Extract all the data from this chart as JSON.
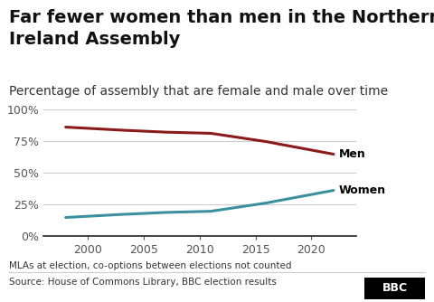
{
  "title": "Far fewer women than men in the Northern\nIreland Assembly",
  "subtitle": "Percentage of assembly that are female and male over time",
  "years": [
    1998,
    2003,
    2007,
    2011,
    2016,
    2017,
    2022
  ],
  "men": [
    0.857,
    0.833,
    0.817,
    0.808,
    0.742,
    0.725,
    0.643
  ],
  "women": [
    0.143,
    0.167,
    0.183,
    0.192,
    0.258,
    0.275,
    0.357
  ],
  "men_color": "#8b1a1a",
  "women_color": "#3a8fa0",
  "men_label": "Men",
  "women_label": "Women",
  "footnote1": "MLAs at election, co-options between elections not counted",
  "footnote2": "Source: House of Commons Library, BBC election results",
  "bbc_label": "BBC",
  "bg_color": "#ffffff",
  "grid_color": "#cccccc",
  "axis_line_color": "#222222",
  "ylim": [
    0,
    1.05
  ],
  "yticks": [
    0,
    0.25,
    0.5,
    0.75,
    1.0
  ],
  "ytick_labels": [
    "0%",
    "25%",
    "50%",
    "75%",
    "100%"
  ],
  "title_fontsize": 14,
  "subtitle_fontsize": 10,
  "tick_fontsize": 9,
  "label_fontsize": 9,
  "footnote_fontsize": 7.5
}
